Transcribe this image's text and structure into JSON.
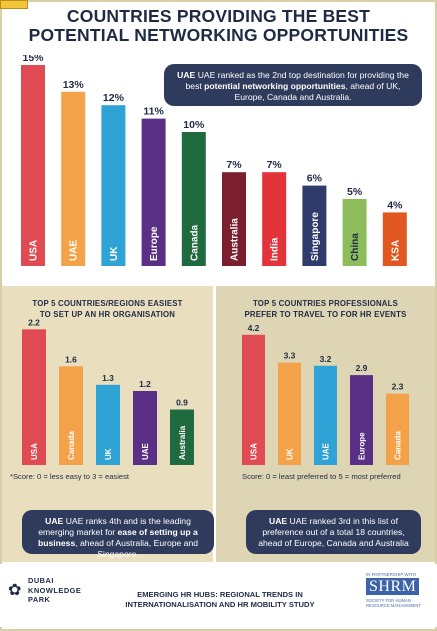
{
  "title_line1": "COUNTRIES PROVIDING THE BEST",
  "title_line2": "POTENTIAL NETWORKING OPPORTUNITIES",
  "main_note": {
    "pre": "UAE ranked as the 2nd top destination for providing the best ",
    "bold": "potential networking opportunities",
    "post": ", ahead of UK, Europe, Canada and Australia."
  },
  "left_panel": {
    "title_line1": "TOP 5 COUNTRIES/REGIONS EASIEST",
    "title_line2": "TO SET UP AN HR ORGANISATION",
    "score_note": "*Score: 0 = less easy to 3 = easiest",
    "note": {
      "pre": "UAE ranks 4th and is the leading emerging market for ",
      "bold": "ease of setting up a business",
      "post": ", ahead of Australia, Europe and Singapore."
    }
  },
  "right_panel": {
    "title_line1": "TOP 5 COUNTRIES PROFESSIONALS",
    "title_line2": "PREFER TO TRAVEL TO FOR HR EVENTS",
    "score_note": "Score: 0 = least preferred to 5 = most preferred",
    "note": {
      "pre": "UAE ranked 3rd in this list of preference out of a total 18 countries, ahead of Europe, Canada and Australia"
    }
  },
  "footer": {
    "dkp_line1": "DUBAI",
    "dkp_line2": "KNOWLEDGE",
    "dkp_line3": "PARK",
    "title_line1": "EMERGING HR HUBS: REGIONAL TRENDS IN",
    "title_line2": "INTERNATIONALISATION AND HR MOBILITY STUDY",
    "shrm_top": "IN PARTNERSHIP WITH",
    "shrm_logo": "SHRM",
    "shrm_sub": "SOCIETY FOR HUMAN RESOURCE MANAGEMENT"
  },
  "chart_data": [
    {
      "type": "bar",
      "title": "COUNTRIES PROVIDING THE BEST POTENTIAL NETWORKING OPPORTUNITIES",
      "categories": [
        "USA",
        "UAE",
        "UK",
        "Europe",
        "Canada",
        "Australia",
        "India",
        "Singapore",
        "China",
        "KSA"
      ],
      "values": [
        15,
        13,
        12,
        11,
        10,
        7,
        7,
        6,
        5,
        4
      ],
      "value_labels": [
        "15%",
        "13%",
        "12%",
        "11%",
        "10%",
        "7%",
        "7%",
        "6%",
        "5%",
        "4%"
      ],
      "colors": [
        "#e04a52",
        "#f4a24a",
        "#2fa3d6",
        "#5a2f86",
        "#1f6b3f",
        "#7b1f2e",
        "#e2323a",
        "#2f3c6b",
        "#8dbd5a",
        "#e0571f"
      ],
      "text_colors": [
        "#ffffff",
        "#ffffff",
        "#ffffff",
        "#ffffff",
        "#ffffff",
        "#ffffff",
        "#ffffff",
        "#ffffff",
        "#1f2a44",
        "#ffffff"
      ]
    },
    {
      "type": "bar",
      "title": "TOP 5 COUNTRIES/REGIONS EASIEST TO SET UP AN HR ORGANISATION",
      "categories": [
        "USA",
        "Canada",
        "UK",
        "UAE",
        "Australia"
      ],
      "values": [
        2.2,
        1.6,
        1.3,
        1.2,
        0.9
      ],
      "value_labels": [
        "2.2",
        "1.6",
        "1.3",
        "1.2",
        "0.9"
      ],
      "colors": [
        "#e04a52",
        "#f4a24a",
        "#2fa3d6",
        "#5a2f86",
        "#1f6b3f"
      ],
      "ylim": [
        0,
        3
      ]
    },
    {
      "type": "bar",
      "title": "TOP 5 COUNTRIES PROFESSIONALS PREFER TO TRAVEL TO FOR HR EVENTS",
      "categories": [
        "USA",
        "UK",
        "UAE",
        "Europe",
        "Canada"
      ],
      "values": [
        4.2,
        3.3,
        3.2,
        2.9,
        2.3
      ],
      "value_labels": [
        "4.2",
        "3.3",
        "3.2",
        "2.9",
        "2.3"
      ],
      "colors": [
        "#e04a52",
        "#f4a24a",
        "#2fa3d6",
        "#5a2f86",
        "#f4a24a"
      ],
      "ylim": [
        0,
        5
      ]
    }
  ]
}
